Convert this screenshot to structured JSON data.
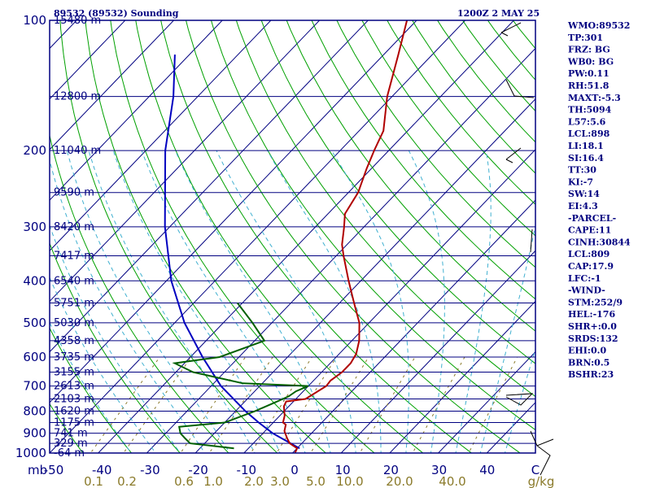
{
  "header": {
    "station": "89532 (89532) Sounding",
    "time": "1200Z  2 MAY 25"
  },
  "stats": [
    "WMO:89532",
    "TP:301",
    "FRZ: BG",
    "WB0: BG",
    "PW:0.11",
    "RH:51.8",
    "MAXT:-5.3",
    "TH:5094",
    "L57:5.6",
    "LCL:898",
    "LI:18.1",
    "SI:16.4",
    "TT:30",
    "KI:-7",
    "SW:14",
    "EI:4.3",
    "-PARCEL-",
    "CAPE:11",
    "CINH:30844",
    "LCL:809",
    "CAP:17.9",
    "LFC:-1",
    "-WIND-",
    "STM:252/9",
    "HEL:-176",
    "SHR+:0.0",
    "SRDS:132",
    "EHI:0.0",
    "BRN:0.5",
    "BSHR:23"
  ],
  "colors": {
    "frame": "#000080",
    "isobar": "#000080",
    "isotherm": "#000080",
    "dry_adiabat": "#00a000",
    "moist_adiabat": "#40b0d0",
    "mixing_ratio": "#8a7a2a",
    "temperature": "#b00000",
    "dewpoint": "#006000",
    "parcel": "#0000c0",
    "wind_barb": "#000000"
  },
  "chart_data": {
    "type": "skew-t",
    "y_axis": {
      "label": "mb",
      "scale": "log",
      "range_hpa": [
        1000,
        100
      ],
      "ticks": [
        100,
        200,
        300,
        400,
        500,
        600,
        700,
        800,
        900,
        1000
      ]
    },
    "x_axis": {
      "unit": "C",
      "ticks": [
        -50,
        -40,
        -30,
        -20,
        -10,
        0,
        10,
        20,
        30,
        40
      ],
      "tick_labels": [
        "-50",
        "-40",
        "-30",
        "-20",
        "-10",
        "0",
        "10",
        "20",
        "30",
        "40",
        "C"
      ]
    },
    "mixing_ratio_axis": {
      "unit": "g/kg",
      "labels": [
        "0.1",
        "0.2",
        "0.6",
        "1.0",
        "2.0",
        "3.0",
        "5.0",
        "10.0",
        "20.0",
        "40.0",
        "g/kg"
      ]
    },
    "height_labels": [
      {
        "p": 100,
        "text": "15480 m"
      },
      {
        "p": 150,
        "text": "12800 m"
      },
      {
        "p": 200,
        "text": "11040 m"
      },
      {
        "p": 250,
        "text": "9590 m"
      },
      {
        "p": 300,
        "text": "8420 m"
      },
      {
        "p": 350,
        "text": "7417 m"
      },
      {
        "p": 400,
        "text": "6540 m"
      },
      {
        "p": 450,
        "text": "5751 m"
      },
      {
        "p": 500,
        "text": "5030 m"
      },
      {
        "p": 550,
        "text": "4358 m"
      },
      {
        "p": 600,
        "text": "3735 m"
      },
      {
        "p": 650,
        "text": "3155 m"
      },
      {
        "p": 700,
        "text": "2613 m"
      },
      {
        "p": 750,
        "text": "2103 m"
      },
      {
        "p": 800,
        "text": "1620 m"
      },
      {
        "p": 850,
        "text": "1175 m"
      },
      {
        "p": 900,
        "text": "741 m"
      },
      {
        "p": 950,
        "text": "329 m"
      },
      {
        "p": 1000,
        "text": "-64 m"
      }
    ],
    "temperature": [
      {
        "p": 1000,
        "t": 0.5
      },
      {
        "p": 975,
        "t": 0.0
      },
      {
        "p": 950,
        "t": -2.5
      },
      {
        "p": 925,
        "t": -4.0
      },
      {
        "p": 890,
        "t": -6.0
      },
      {
        "p": 860,
        "t": -7.0
      },
      {
        "p": 850,
        "t": -8.0
      },
      {
        "p": 820,
        "t": -9.0
      },
      {
        "p": 780,
        "t": -11.0
      },
      {
        "p": 760,
        "t": -11.5
      },
      {
        "p": 750,
        "t": -8.0
      },
      {
        "p": 700,
        "t": -6.3
      },
      {
        "p": 680,
        "t": -6.5
      },
      {
        "p": 650,
        "t": -5.8
      },
      {
        "p": 620,
        "t": -5.8
      },
      {
        "p": 590,
        "t": -6.5
      },
      {
        "p": 550,
        "t": -8.5
      },
      {
        "p": 500,
        "t": -12.0
      },
      {
        "p": 450,
        "t": -17.0
      },
      {
        "p": 400,
        "t": -22.5
      },
      {
        "p": 350,
        "t": -28.5
      },
      {
        "p": 330,
        "t": -31.0
      },
      {
        "p": 301,
        "t": -34.0
      },
      {
        "p": 280,
        "t": -36.5
      },
      {
        "p": 250,
        "t": -38.0
      },
      {
        "p": 220,
        "t": -41.0
      },
      {
        "p": 200,
        "t": -43.0
      },
      {
        "p": 180,
        "t": -45.0
      },
      {
        "p": 150,
        "t": -51.0
      },
      {
        "p": 120,
        "t": -57.0
      },
      {
        "p": 100,
        "t": -62.0
      }
    ],
    "dewpoint": [
      {
        "p": 975,
        "t": -13.0
      },
      {
        "p": 950,
        "t": -23.0
      },
      {
        "p": 925,
        "t": -25.0
      },
      {
        "p": 900,
        "t": -27.0
      },
      {
        "p": 870,
        "t": -28.5
      },
      {
        "p": 850,
        "t": -20.0
      },
      {
        "p": 800,
        "t": -16.0
      },
      {
        "p": 770,
        "t": -14.0
      },
      {
        "p": 740,
        "t": -12.0
      },
      {
        "p": 720,
        "t": -11.5
      },
      {
        "p": 700,
        "t": -10.0
      },
      {
        "p": 690,
        "t": -24.0
      },
      {
        "p": 650,
        "t": -36.5
      },
      {
        "p": 620,
        "t": -42.0
      },
      {
        "p": 600,
        "t": -34.0
      },
      {
        "p": 550,
        "t": -28.0
      },
      {
        "p": 500,
        "t": -34.0
      },
      {
        "p": 450,
        "t": -41.0
      }
    ],
    "parcel": [
      {
        "p": 975,
        "t": 0.5
      },
      {
        "p": 900,
        "t": -8.0
      },
      {
        "p": 850,
        "t": -13.0
      },
      {
        "p": 800,
        "t": -18.0
      },
      {
        "p": 700,
        "t": -28.0
      },
      {
        "p": 600,
        "t": -37.5
      },
      {
        "p": 500,
        "t": -48.0
      },
      {
        "p": 400,
        "t": -59.0
      },
      {
        "p": 300,
        "t": -71.0
      },
      {
        "p": 200,
        "t": -86.0
      },
      {
        "p": 150,
        "t": -95.0
      },
      {
        "p": 120,
        "t": -103.0
      }
    ]
  }
}
